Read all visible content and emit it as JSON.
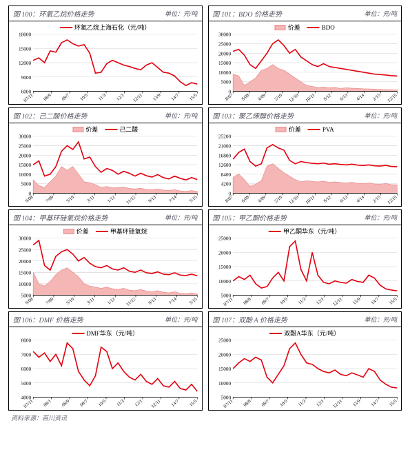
{
  "colors": {
    "line": "#e20613",
    "area_fill": "#f5b6b6",
    "area_stroke": "#ec8a8a",
    "grid": "#d0d0d0",
    "axis": "#000000",
    "text": "#555260",
    "bg": "#ffffff"
  },
  "footer": "资料来源：百川资讯",
  "unit_label": "单位：元/吨",
  "charts": [
    {
      "fig_no": "图 100：",
      "title": "环氧乙烷价格走势",
      "legend": [
        {
          "type": "line",
          "label": "环氧乙烷上海石化（元/吨）"
        }
      ],
      "ylim": [
        6000,
        18000
      ],
      "yticks": [
        6000,
        9000,
        12000,
        15000,
        18000
      ],
      "xticks": [
        "07/11",
        "08/9",
        "09/7",
        "10/5",
        "11/3",
        "12/1",
        "12/11",
        "13/9",
        "14/7",
        "15/5"
      ],
      "series": {
        "line": [
          12500,
          13000,
          12000,
          14500,
          14200,
          16200,
          16800,
          16000,
          15500,
          15800,
          14000,
          9800,
          10000,
          11800,
          12500,
          12000,
          11500,
          11200,
          10800,
          10500,
          11500,
          12000,
          11000,
          10000,
          9800,
          9200,
          8000,
          7200,
          7800,
          7500
        ]
      }
    },
    {
      "fig_no": "图 101：",
      "title": "BDO 价格走势",
      "legend": [
        {
          "type": "area",
          "label": "价差"
        },
        {
          "type": "line",
          "label": "BDO"
        }
      ],
      "ylim": [
        0,
        30000
      ],
      "yticks": [
        0,
        5000,
        10000,
        15000,
        20000,
        25000,
        30000
      ],
      "xticks": [
        "8/07",
        "8/08",
        "4/09",
        "2/10",
        "12/10",
        "10/11",
        "8/12",
        "6/13",
        "4/14",
        "2/15",
        "12/15"
      ],
      "series": {
        "area": [
          9000,
          8000,
          3000,
          5000,
          7000,
          11000,
          12000,
          14000,
          12000,
          11000,
          9000,
          7000,
          5000,
          3000,
          2500,
          2000,
          2200,
          1800,
          2000,
          1500,
          1800,
          1600,
          1500,
          1300,
          1200,
          1100,
          1000,
          900,
          800,
          700
        ],
        "line": [
          21000,
          22000,
          19000,
          14000,
          12000,
          16000,
          20000,
          25000,
          27000,
          24000,
          20000,
          22000,
          18000,
          16000,
          14000,
          13000,
          14500,
          13000,
          12500,
          12000,
          11500,
          11000,
          10500,
          10000,
          9500,
          9000,
          8800,
          8500,
          8200,
          8000
        ]
      }
    },
    {
      "fig_no": "图 102：",
      "title": "己二酸价格走势",
      "legend": [
        {
          "type": "area",
          "label": "价差"
        },
        {
          "type": "line",
          "label": "己二酸"
        }
      ],
      "ylim": [
        0,
        30000
      ],
      "yticks": [
        0,
        5000,
        10000,
        15000,
        20000,
        25000,
        30000
      ],
      "xticks": [
        "9/08",
        "7/09",
        "5/10",
        "3/11",
        "1/12",
        "11/12",
        "9/13",
        "7/14",
        "5/15"
      ],
      "series": {
        "area": [
          7000,
          4000,
          3000,
          6000,
          9000,
          14000,
          12000,
          14000,
          10000,
          6000,
          5500,
          4500,
          3000,
          3500,
          2800,
          3000,
          3200,
          2500,
          2200,
          2600,
          2000,
          1800,
          2200,
          1600,
          1500,
          1800,
          1200,
          1000,
          1400,
          900
        ],
        "line": [
          15000,
          17000,
          9000,
          10000,
          14000,
          22000,
          25000,
          23000,
          27000,
          18000,
          19000,
          14000,
          11000,
          13000,
          12000,
          10000,
          11500,
          10500,
          9000,
          10500,
          9200,
          8500,
          9800,
          8200,
          7500,
          9000,
          7800,
          7000,
          8200,
          7200
        ]
      }
    },
    {
      "fig_no": "图 103：",
      "title": "聚乙烯醇价格走势",
      "legend": [
        {
          "type": "area",
          "label": "价差"
        },
        {
          "type": "line",
          "label": "PVA"
        }
      ],
      "ylim": [
        0,
        25200
      ],
      "yticks": [
        0,
        4200,
        8400,
        12600,
        16800,
        21000,
        25200
      ],
      "xticks": [
        "8/07",
        "6/08",
        "4/09",
        "2/10",
        "12/10",
        "10/11",
        "8/12",
        "6/13",
        "4/14",
        "2/15",
        "12/15"
      ],
      "series": {
        "area": [
          7000,
          8500,
          6000,
          3000,
          4000,
          5500,
          12000,
          13000,
          11000,
          9000,
          7500,
          6000,
          5000,
          5500,
          5200,
          5000,
          5300,
          4800,
          5000,
          4700,
          4500,
          4800,
          4400,
          4200,
          4500,
          4100,
          4000,
          4300,
          3800,
          3700
        ],
        "line": [
          15000,
          18000,
          19500,
          14000,
          12000,
          13000,
          20000,
          21500,
          20000,
          19000,
          14500,
          13000,
          14000,
          13500,
          13200,
          13000,
          13300,
          12800,
          13000,
          12700,
          12500,
          12800,
          12400,
          12200,
          12500,
          12100,
          12000,
          12300,
          11800,
          11700
        ]
      }
    },
    {
      "fig_no": "图 104：",
      "title": "甲基环硅氧烷价格走势",
      "legend": [
        {
          "type": "area",
          "label": "价差"
        },
        {
          "type": "line",
          "label": "甲基环硅氧烷"
        }
      ],
      "ylim": [
        5000,
        30000
      ],
      "yticks": [
        5000,
        10000,
        15000,
        20000,
        25000,
        30000
      ],
      "xticks": [
        "9/08",
        "7/09",
        "5/10",
        "3/11",
        "1/12",
        "11/12",
        "9/13",
        "7/14",
        "5/15"
      ],
      "series": {
        "area": [
          15000,
          10000,
          9000,
          11000,
          14000,
          16000,
          17000,
          15000,
          13000,
          10000,
          9000,
          8500,
          8000,
          8500,
          7800,
          7500,
          8000,
          7200,
          7000,
          7500,
          6800,
          6500,
          7000,
          6300,
          6000,
          6500,
          5800,
          5600,
          6000,
          5500
        ],
        "line": [
          27000,
          29000,
          18000,
          16000,
          22000,
          24000,
          25000,
          23000,
          20000,
          21500,
          19000,
          17500,
          17000,
          18000,
          16500,
          16000,
          17000,
          15500,
          15000,
          16000,
          14800,
          14500,
          15200,
          14200,
          14000,
          14800,
          13800,
          13600,
          14200,
          13500
        ]
      }
    },
    {
      "fig_no": "图 105：",
      "title": "甲乙酮价格走势",
      "legend": [
        {
          "type": "line",
          "label": "甲乙酮华东（元/吨）"
        }
      ],
      "ylim": [
        5000,
        25000
      ],
      "yticks": [
        5000,
        10000,
        15000,
        20000,
        25000
      ],
      "xticks": [
        "07/11",
        "08/9",
        "09/7",
        "10/5",
        "11/3",
        "12/1",
        "12/11",
        "13/9",
        "14/7",
        "15/5"
      ],
      "series": {
        "line": [
          10000,
          11500,
          10500,
          12000,
          9000,
          7500,
          8000,
          11000,
          13000,
          10000,
          22000,
          24000,
          14000,
          10000,
          20000,
          12000,
          9500,
          9000,
          10000,
          9500,
          9200,
          10500,
          9800,
          9500,
          12000,
          11000,
          8500,
          7200,
          6800,
          6500
        ]
      }
    },
    {
      "fig_no": "图 106：",
      "title": "DMF 价格走势",
      "legend": [
        {
          "type": "line",
          "label": "DMF华东（元/吨）"
        }
      ],
      "ylim": [
        4000,
        8000
      ],
      "yticks": [
        4000,
        5000,
        6000,
        7000,
        8000
      ],
      "xticks": [
        "07/11",
        "08/1",
        "08/9",
        "09/7",
        "10/5",
        "11/3",
        "12/1",
        "12/11",
        "14/7",
        "15/5"
      ],
      "series": {
        "line": [
          7200,
          6800,
          7100,
          6500,
          7000,
          6200,
          7800,
          7400,
          5800,
          5200,
          4800,
          5500,
          7500,
          7200,
          6000,
          6400,
          5800,
          5400,
          5200,
          5600,
          5100,
          4900,
          5300,
          4800,
          4700,
          5100,
          4600,
          4500,
          4900,
          4400
        ]
      }
    },
    {
      "fig_no": "图 107：",
      "title": "双酚 A 价格走势",
      "legend": [
        {
          "type": "line",
          "label": "双酚A华东（元/吨）"
        }
      ],
      "ylim": [
        5000,
        25000
      ],
      "yticks": [
        5000,
        10000,
        15000,
        20000,
        25000
      ],
      "xticks": [
        "07/11",
        "08/9",
        "09/7",
        "10/5",
        "11/3",
        "12/1",
        "12/11",
        "13/9",
        "14/7",
        "15/5"
      ],
      "series": {
        "line": [
          15000,
          17000,
          18500,
          17500,
          19000,
          18000,
          12000,
          10000,
          13000,
          16000,
          22000,
          24000,
          20000,
          17000,
          16500,
          15000,
          14000,
          13500,
          14500,
          13000,
          12500,
          13500,
          12800,
          12000,
          15000,
          14000,
          11000,
          9500,
          8500,
          8200
        ]
      }
    }
  ]
}
